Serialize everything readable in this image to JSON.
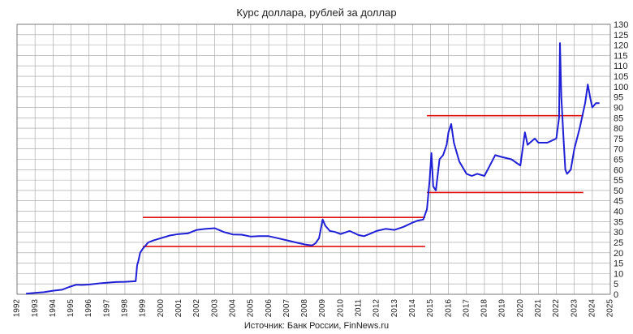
{
  "chart_data": {
    "type": "line",
    "title": "Курс доллара, рублей за доллар",
    "source": "Источник: Банк России, FinNews.ru",
    "xlabel": "",
    "ylabel": "",
    "xlim": [
      1992,
      2025
    ],
    "ylim": [
      0,
      130
    ],
    "x_ticks": [
      "1992",
      "1993",
      "1994",
      "1995",
      "1996",
      "1997",
      "1998",
      "1999",
      "2000",
      "2001",
      "2002",
      "2003",
      "2004",
      "2005",
      "2006",
      "2007",
      "2008",
      "2009",
      "2010",
      "2011",
      "2012",
      "2013",
      "2014",
      "2015",
      "2016",
      "2017",
      "2018",
      "2019",
      "2020",
      "2021",
      "2022",
      "2023",
      "2024",
      "2025"
    ],
    "y_ticks": [
      "0",
      "5",
      "10",
      "15",
      "20",
      "25",
      "30",
      "35",
      "40",
      "45",
      "50",
      "55",
      "60",
      "65",
      "70",
      "75",
      "80",
      "85",
      "90",
      "95",
      "100",
      "105",
      "110",
      "115",
      "120",
      "125",
      "130"
    ],
    "grid": true,
    "legend": "none",
    "colors": {
      "series": "#1f1fd6",
      "levels": "#e01010",
      "grid": "#a0a0a0"
    },
    "series": [
      {
        "x": [
          1992.5,
          1993.0,
          1993.5,
          1994.0,
          1994.5,
          1994.9,
          1995.3,
          1995.6,
          1996.0,
          1996.5,
          1997.0,
          1997.5,
          1998.0,
          1998.6,
          1998.68,
          1998.75,
          1998.85,
          1999.0,
          1999.3,
          1999.6,
          2000.0,
          2000.5,
          2001.0,
          2001.5,
          2002.0,
          2002.5,
          2003.0,
          2003.5,
          2004.0,
          2004.5,
          2005.0,
          2005.5,
          2006.0,
          2006.5,
          2007.0,
          2007.5,
          2008.0,
          2008.4,
          2008.6,
          2008.8,
          2009.0,
          2009.15,
          2009.4,
          2009.7,
          2010.0,
          2010.5,
          2011.0,
          2011.3,
          2011.6,
          2012.0,
          2012.5,
          2013.0,
          2013.5,
          2014.0,
          2014.3,
          2014.6,
          2014.8,
          2014.95,
          2015.05,
          2015.15,
          2015.3,
          2015.5,
          2015.7,
          2015.9,
          2016.0,
          2016.15,
          2016.3,
          2016.6,
          2017.0,
          2017.3,
          2017.6,
          2018.0,
          2018.3,
          2018.6,
          2019.0,
          2019.5,
          2020.0,
          2020.25,
          2020.4,
          2020.8,
          2021.0,
          2021.5,
          2022.0,
          2022.15,
          2022.2,
          2022.28,
          2022.4,
          2022.5,
          2022.6,
          2022.8,
          2023.0,
          2023.3,
          2023.6,
          2023.75,
          2023.9,
          2024.0,
          2024.2,
          2024.4
        ],
        "y": [
          0.3,
          0.7,
          1.0,
          1.7,
          2.2,
          3.5,
          4.6,
          4.5,
          4.7,
          5.2,
          5.6,
          5.9,
          6.0,
          6.3,
          14.0,
          16.0,
          20.0,
          22.0,
          25.0,
          26.0,
          27.0,
          28.3,
          29.0,
          29.3,
          31.0,
          31.5,
          31.8,
          30.0,
          28.8,
          28.7,
          27.8,
          28.0,
          28.0,
          27.0,
          26.0,
          25.0,
          24.0,
          23.5,
          24.5,
          27.0,
          36.0,
          33.0,
          30.5,
          30.0,
          29.0,
          30.5,
          28.5,
          28.0,
          29.0,
          30.5,
          31.5,
          31.0,
          32.5,
          34.5,
          35.5,
          36.0,
          41.0,
          55.0,
          68.0,
          52.0,
          50.0,
          65.0,
          67.0,
          72.0,
          78.0,
          82.0,
          73.0,
          64.0,
          58.0,
          57.0,
          58.0,
          57.0,
          62.0,
          67.0,
          66.0,
          65.0,
          62.0,
          78.0,
          72.0,
          75.0,
          73.0,
          73.0,
          75.0,
          85.0,
          121.0,
          95.0,
          75.0,
          60.0,
          58.0,
          60.0,
          70.0,
          80.0,
          92.0,
          101.0,
          94.0,
          90.0,
          92.0,
          92.0
        ]
      }
    ],
    "reference_lines": [
      {
        "x": [
          1999.0,
          2014.7
        ],
        "y": 37
      },
      {
        "x": [
          1999.0,
          2014.7
        ],
        "y": 23
      },
      {
        "x": [
          2014.8,
          2023.5
        ],
        "y": 86
      },
      {
        "x": [
          2014.8,
          2023.5
        ],
        "y": 49
      }
    ]
  }
}
